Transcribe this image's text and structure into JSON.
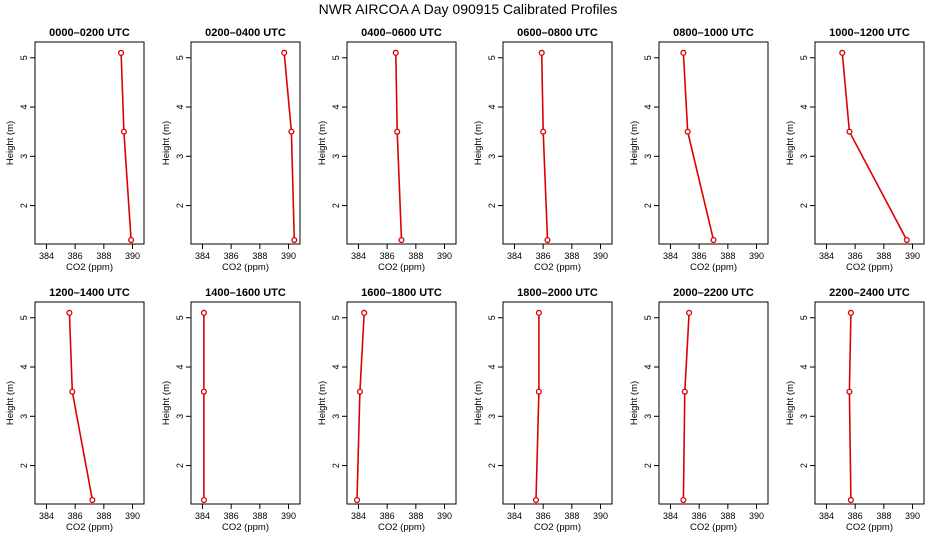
{
  "title": "NWR AIRCOA A  Day 090915  Calibrated Profiles",
  "colors": {
    "series": "#dd0000",
    "axis": "#000000",
    "background": "#ffffff"
  },
  "chart_data": [
    {
      "type": "line",
      "title": "0000–0200 UTC",
      "xlabel": "CO2 (ppm)",
      "ylabel": "Height (m)",
      "xlim": [
        383.2,
        390.8
      ],
      "ylim": [
        1.22,
        5.32
      ],
      "xticks": [
        384,
        386,
        388,
        390
      ],
      "yticks": [
        2,
        3,
        4,
        5
      ],
      "grid": false,
      "x": [
        389.2,
        389.4,
        389.9
      ],
      "y": [
        5.1,
        3.5,
        1.3
      ]
    },
    {
      "type": "line",
      "title": "0200–0400 UTC",
      "xlabel": "CO2 (ppm)",
      "ylabel": "Height (m)",
      "xlim": [
        383.2,
        390.8
      ],
      "ylim": [
        1.22,
        5.32
      ],
      "xticks": [
        384,
        386,
        388,
        390
      ],
      "yticks": [
        2,
        3,
        4,
        5
      ],
      "grid": false,
      "x": [
        389.7,
        390.2,
        390.4
      ],
      "y": [
        5.1,
        3.5,
        1.3
      ]
    },
    {
      "type": "line",
      "title": "0400–0600 UTC",
      "xlabel": "CO2 (ppm)",
      "ylabel": "Height (m)",
      "xlim": [
        383.2,
        390.8
      ],
      "ylim": [
        1.22,
        5.32
      ],
      "xticks": [
        384,
        386,
        388,
        390
      ],
      "yticks": [
        2,
        3,
        4,
        5
      ],
      "grid": false,
      "x": [
        386.6,
        386.7,
        387.0
      ],
      "y": [
        5.1,
        3.5,
        1.3
      ]
    },
    {
      "type": "line",
      "title": "0600–0800 UTC",
      "xlabel": "CO2 (ppm)",
      "ylabel": "Height (m)",
      "xlim": [
        383.2,
        390.8
      ],
      "ylim": [
        1.22,
        5.32
      ],
      "xticks": [
        384,
        386,
        388,
        390
      ],
      "yticks": [
        2,
        3,
        4,
        5
      ],
      "grid": false,
      "x": [
        385.9,
        386.0,
        386.3
      ],
      "y": [
        5.1,
        3.5,
        1.3
      ]
    },
    {
      "type": "line",
      "title": "0800–1000 UTC",
      "xlabel": "CO2 (ppm)",
      "ylabel": "Height (m)",
      "xlim": [
        383.2,
        390.8
      ],
      "ylim": [
        1.22,
        5.32
      ],
      "xticks": [
        384,
        386,
        388,
        390
      ],
      "yticks": [
        2,
        3,
        4,
        5
      ],
      "grid": false,
      "x": [
        384.9,
        385.2,
        387.0
      ],
      "y": [
        5.1,
        3.5,
        1.3
      ]
    },
    {
      "type": "line",
      "title": "1000–1200 UTC",
      "xlabel": "CO2 (ppm)",
      "ylabel": "Height (m)",
      "xlim": [
        383.2,
        390.8
      ],
      "ylim": [
        1.22,
        5.32
      ],
      "xticks": [
        384,
        386,
        388,
        390
      ],
      "yticks": [
        2,
        3,
        4,
        5
      ],
      "grid": false,
      "x": [
        385.1,
        385.6,
        389.6
      ],
      "y": [
        5.1,
        3.5,
        1.3
      ]
    },
    {
      "type": "line",
      "title": "1200–1400 UTC",
      "xlabel": "CO2 (ppm)",
      "ylabel": "Height (m)",
      "xlim": [
        383.2,
        390.8
      ],
      "ylim": [
        1.22,
        5.32
      ],
      "xticks": [
        384,
        386,
        388,
        390
      ],
      "yticks": [
        2,
        3,
        4,
        5
      ],
      "grid": false,
      "x": [
        385.6,
        385.8,
        387.2
      ],
      "y": [
        5.1,
        3.5,
        1.3
      ]
    },
    {
      "type": "line",
      "title": "1400–1600 UTC",
      "xlabel": "CO2 (ppm)",
      "ylabel": "Height (m)",
      "xlim": [
        383.2,
        390.8
      ],
      "ylim": [
        1.22,
        5.32
      ],
      "xticks": [
        384,
        386,
        388,
        390
      ],
      "yticks": [
        2,
        3,
        4,
        5
      ],
      "grid": false,
      "x": [
        384.1,
        384.1,
        384.1
      ],
      "y": [
        5.1,
        3.5,
        1.3
      ]
    },
    {
      "type": "line",
      "title": "1600–1800 UTC",
      "xlabel": "CO2 (ppm)",
      "ylabel": "Height (m)",
      "xlim": [
        383.2,
        390.8
      ],
      "ylim": [
        1.22,
        5.32
      ],
      "xticks": [
        384,
        386,
        388,
        390
      ],
      "yticks": [
        2,
        3,
        4,
        5
      ],
      "grid": false,
      "x": [
        384.4,
        384.1,
        383.9
      ],
      "y": [
        5.1,
        3.5,
        1.3
      ]
    },
    {
      "type": "line",
      "title": "1800–2000 UTC",
      "xlabel": "CO2 (ppm)",
      "ylabel": "Height (m)",
      "xlim": [
        383.2,
        390.8
      ],
      "ylim": [
        1.22,
        5.32
      ],
      "xticks": [
        384,
        386,
        388,
        390
      ],
      "yticks": [
        2,
        3,
        4,
        5
      ],
      "grid": false,
      "x": [
        385.7,
        385.7,
        385.5
      ],
      "y": [
        5.1,
        3.5,
        1.3
      ]
    },
    {
      "type": "line",
      "title": "2000–2200 UTC",
      "xlabel": "CO2 (ppm)",
      "ylabel": "Height (m)",
      "xlim": [
        383.2,
        390.8
      ],
      "ylim": [
        1.22,
        5.32
      ],
      "xticks": [
        384,
        386,
        388,
        390
      ],
      "yticks": [
        2,
        3,
        4,
        5
      ],
      "grid": false,
      "x": [
        385.3,
        385.0,
        384.9
      ],
      "y": [
        5.1,
        3.5,
        1.3
      ]
    },
    {
      "type": "line",
      "title": "2200–2400 UTC",
      "xlabel": "CO2 (ppm)",
      "ylabel": "Height (m)",
      "xlim": [
        383.2,
        390.8
      ],
      "ylim": [
        1.22,
        5.32
      ],
      "xticks": [
        384,
        386,
        388,
        390
      ],
      "yticks": [
        2,
        3,
        4,
        5
      ],
      "grid": false,
      "x": [
        385.7,
        385.6,
        385.7
      ],
      "y": [
        5.1,
        3.5,
        1.3
      ]
    }
  ]
}
